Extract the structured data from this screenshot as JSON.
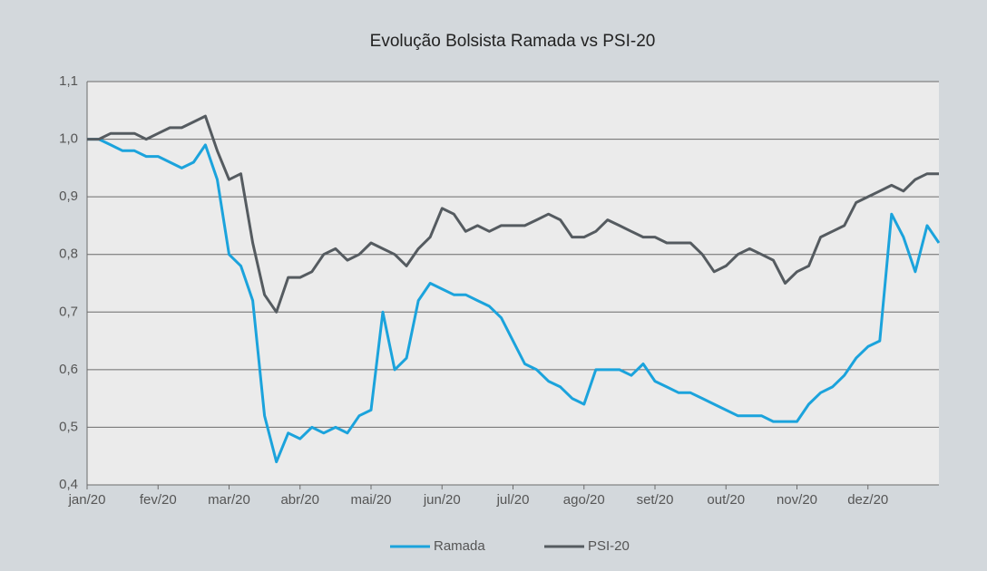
{
  "chart_data": {
    "type": "line",
    "title": "Evolução Bolsista Ramada vs PSI-20",
    "categories": [
      "jan/20",
      null,
      null,
      null,
      null,
      null,
      "fev/20",
      null,
      null,
      null,
      null,
      null,
      "mar/20",
      null,
      null,
      null,
      null,
      null,
      "abr/20",
      null,
      null,
      null,
      null,
      null,
      "mai/20",
      null,
      null,
      null,
      null,
      null,
      "jun/20",
      null,
      null,
      null,
      null,
      null,
      "jul/20",
      null,
      null,
      null,
      null,
      null,
      "ago/20",
      null,
      null,
      null,
      null,
      null,
      "set/20",
      null,
      null,
      null,
      null,
      null,
      "out/20",
      null,
      null,
      null,
      null,
      null,
      "nov/20",
      null,
      null,
      null,
      null,
      null,
      "dez/20",
      null,
      null,
      null,
      null,
      null,
      null
    ],
    "series": [
      {
        "name": "Ramada",
        "color": "#1ba3dc",
        "values": [
          1.0,
          1.0,
          0.99,
          0.98,
          0.98,
          0.97,
          0.97,
          0.96,
          0.95,
          0.96,
          0.99,
          0.93,
          0.8,
          0.78,
          0.72,
          0.52,
          0.44,
          0.49,
          0.48,
          0.5,
          0.49,
          0.5,
          0.49,
          0.52,
          0.53,
          0.7,
          0.6,
          0.62,
          0.72,
          0.75,
          0.74,
          0.73,
          0.73,
          0.72,
          0.71,
          0.69,
          0.65,
          0.61,
          0.6,
          0.58,
          0.57,
          0.55,
          0.54,
          0.6,
          0.6,
          0.6,
          0.59,
          0.61,
          0.58,
          0.57,
          0.56,
          0.56,
          0.55,
          0.54,
          0.53,
          0.52,
          0.52,
          0.52,
          0.51,
          0.51,
          0.51,
          0.54,
          0.56,
          0.57,
          0.59,
          0.62,
          0.64,
          0.65,
          0.87,
          0.83,
          0.77,
          0.85,
          0.82
        ]
      },
      {
        "name": "PSI-20",
        "color": "#555b60",
        "values": [
          1.0,
          1.0,
          1.01,
          1.01,
          1.01,
          1.0,
          1.01,
          1.02,
          1.02,
          1.03,
          1.04,
          0.98,
          0.93,
          0.94,
          0.82,
          0.73,
          0.7,
          0.76,
          0.76,
          0.77,
          0.8,
          0.81,
          0.79,
          0.8,
          0.82,
          0.81,
          0.8,
          0.78,
          0.81,
          0.83,
          0.88,
          0.87,
          0.84,
          0.85,
          0.84,
          0.85,
          0.85,
          0.85,
          0.86,
          0.87,
          0.86,
          0.83,
          0.83,
          0.84,
          0.86,
          0.85,
          0.84,
          0.83,
          0.83,
          0.82,
          0.82,
          0.82,
          0.8,
          0.77,
          0.78,
          0.8,
          0.81,
          0.8,
          0.79,
          0.75,
          0.77,
          0.78,
          0.83,
          0.84,
          0.85,
          0.89,
          0.9,
          0.91,
          0.92,
          0.91,
          0.93,
          0.94,
          0.94
        ]
      }
    ],
    "ylim": [
      0.4,
      1.1
    ],
    "yticks": [
      {
        "value": 0.4,
        "label": "0,4"
      },
      {
        "value": 0.5,
        "label": "0,5"
      },
      {
        "value": 0.6,
        "label": "0,6"
      },
      {
        "value": 0.7,
        "label": "0,7"
      },
      {
        "value": 0.8,
        "label": "0,8"
      },
      {
        "value": 0.9,
        "label": "0,9"
      },
      {
        "value": 1.0,
        "label": "1,0"
      },
      {
        "value": 1.1,
        "label": "1,1"
      }
    ],
    "grid": true,
    "legend": "bottom"
  }
}
